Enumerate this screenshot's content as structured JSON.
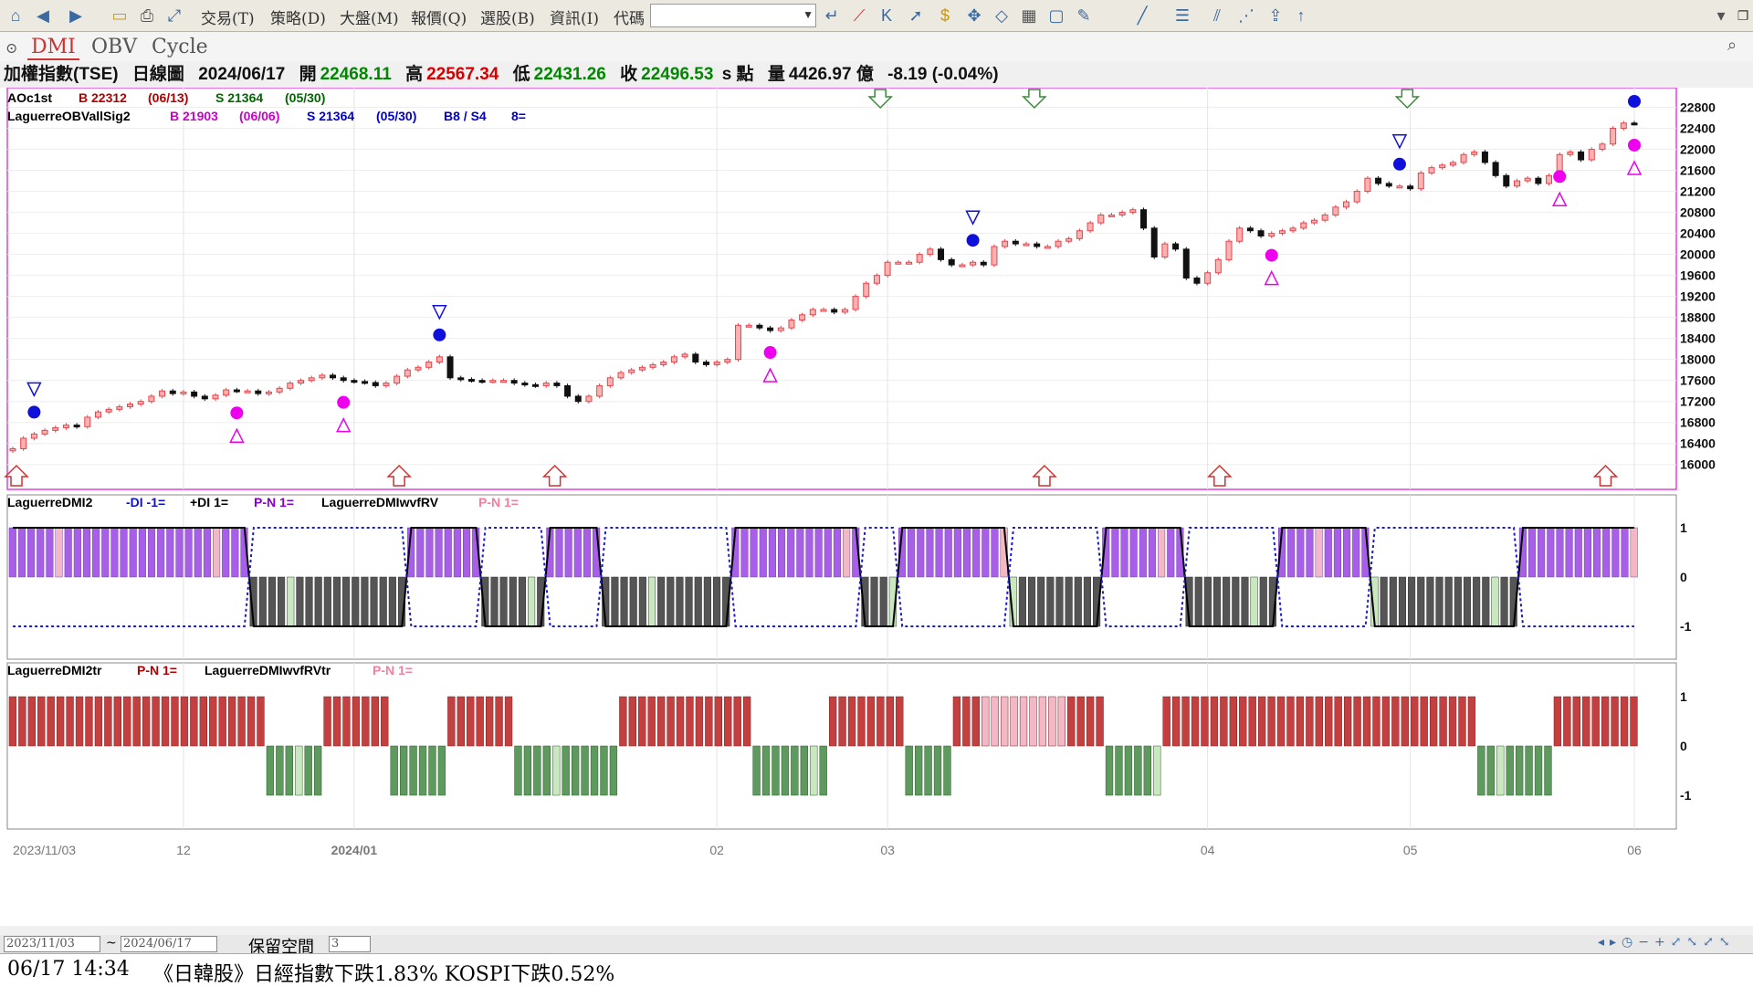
{
  "menus": [
    "交易(T)",
    "策略(D)",
    "大盤(M)",
    "報價(Q)",
    "選股(B)",
    "資訊(I)",
    "代碼"
  ],
  "tabs": [
    "DMI",
    "OBV",
    "Cycle"
  ],
  "header": {
    "symbol": "加權指數(TSE)",
    "period": "日線圖",
    "date": "2024/06/17",
    "open_label": "開",
    "open": "22468.11",
    "high_label": "高",
    "high": "22567.34",
    "low_label": "低",
    "low": "22431.26",
    "close_label": "收",
    "close": "22496.53",
    "unit": "s 點",
    "volume_label": "量",
    "volume": "4426.97 億",
    "change": "-8.19 (-0.04%)"
  },
  "pane1": {
    "legend1": {
      "name": "AOc1st",
      "b": "B 22312",
      "b_date": "(06/13)",
      "s": "S 21364",
      "s_date": "(05/30)"
    },
    "legend2": {
      "name": "LaguerreOBVallSig2",
      "b": "B 21903",
      "b_date": "(06/06)",
      "s": "S 21364",
      "s_date": "(05/30)",
      "bs": "B8 / S4",
      "n": "8="
    }
  },
  "pane2": {
    "name": "LaguerreDMI2",
    "l1": "-DI -1=",
    "l2": "+DI 1=",
    "l3": "P-N 1=",
    "name2": "LaguerreDMIwvfRV",
    "l4": "P-N 1="
  },
  "pane3": {
    "name": "LaguerreDMI2tr",
    "l1": "P-N 1=",
    "name2": "LaguerreDMIwvfRVtr",
    "l2": "P-N 1="
  },
  "x_ticks": [
    "2023/11/03",
    "12",
    "2024/01",
    "02",
    "03",
    "04",
    "05",
    "06"
  ],
  "date_from": "2023/11/03",
  "date_sep": "~",
  "date_to": "2024/06/17",
  "reserve_label": "保留空間",
  "reserve_value": "3",
  "status_time": "06/17 14:34",
  "status_news": "《日韓股》日經指數下跌1.83% KOSPI下跌0.52%",
  "colors": {
    "up": "#e8444c",
    "down": "#111111",
    "buy": "#1010dd",
    "sell": "#ee00ee",
    "purple": "#a75fe8",
    "pink": "#f2b8c6",
    "gray": "#555555",
    "lightgreen": "#c9e8c0",
    "red": "#c44040",
    "green": "#5e9a5e"
  },
  "chart_data": [
    {
      "type": "candlestick",
      "title": "加權指數(TSE) 日線圖",
      "ylim": [
        15700,
        23000
      ],
      "y_ticks": [
        16000,
        16400,
        16800,
        17200,
        17600,
        18000,
        18400,
        18800,
        19200,
        19600,
        20000,
        20400,
        20800,
        21200,
        21600,
        22000,
        22400,
        22800
      ],
      "x_range": [
        "2023/11/03",
        "2024/06/17"
      ],
      "close_approx": [
        16300,
        16500,
        16580,
        16650,
        16700,
        16750,
        16720,
        16900,
        17000,
        17050,
        17100,
        17150,
        17200,
        17300,
        17400,
        17350,
        17380,
        17300,
        17250,
        17320,
        17420,
        17400,
        17400,
        17350,
        17380,
        17450,
        17550,
        17600,
        17650,
        17700,
        17650,
        17600,
        17580,
        17560,
        17500,
        17550,
        17680,
        17800,
        17850,
        17950,
        18050,
        17650,
        17620,
        17600,
        17580,
        17600,
        17600,
        17550,
        17520,
        17500,
        17550,
        17500,
        17300,
        17200,
        17300,
        17500,
        17650,
        17750,
        17800,
        17850,
        17900,
        17950,
        18050,
        18100,
        17950,
        17900,
        17950,
        18000,
        18650,
        18650,
        18600,
        18550,
        18600,
        18750,
        18850,
        18950,
        18950,
        18900,
        18950,
        19200,
        19450,
        19600,
        19850,
        19850,
        19850,
        20000,
        20100,
        19900,
        19800,
        19800,
        19850,
        19800,
        20150,
        20250,
        20200,
        20200,
        20150,
        20150,
        20250,
        20300,
        20450,
        20600,
        20750,
        20750,
        20800,
        20850,
        20500,
        19950,
        20200,
        20100,
        19550,
        19450,
        19650,
        19900,
        20250,
        20500,
        20450,
        20350,
        20400,
        20450,
        20500,
        20600,
        20650,
        20750,
        20900,
        21000,
        21200,
        21450,
        21350,
        21300,
        21300,
        21250,
        21550,
        21650,
        21700,
        21750,
        21900,
        21950,
        21750,
        21500,
        21300,
        21400,
        21450,
        21350,
        21500,
        21900,
        21950,
        21800,
        22000,
        22100,
        22400,
        22500,
        22496.53
      ],
      "signals": {
        "buy_dates": [
          "2023/11/03",
          "2024/01/02",
          "2024/01/23",
          "2024/04/01",
          "2024/04/22",
          "2024/06/13"
        ],
        "sell_dates": [
          "2024/03/08",
          "2024/04/12",
          "2024/05/30"
        ]
      }
    },
    {
      "type": "bar",
      "title": "LaguerreDMI2",
      "ylim": [
        -1.2,
        1.2
      ],
      "y_ticks": [
        -1,
        0,
        1
      ],
      "series": [
        {
          "name": "-DI -1",
          "values": []
        },
        {
          "name": "+DI 1",
          "values": []
        },
        {
          "name": "P-N 1",
          "values": [
            1,
            1,
            1,
            1,
            1,
            1,
            1,
            1,
            1,
            1,
            1,
            1,
            1,
            1,
            1,
            1,
            1,
            1,
            1,
            1,
            1,
            1,
            1,
            1,
            1,
            1,
            -1,
            -1,
            -1,
            -1,
            -1,
            -1,
            -1,
            -1,
            -1,
            -1,
            -1,
            -1,
            -1,
            -1,
            -1,
            -1,
            -1,
            1,
            1,
            1,
            1,
            1,
            1,
            1,
            1,
            -1,
            -1,
            -1,
            -1,
            -1,
            -1,
            -1,
            1,
            1,
            1,
            1,
            1,
            1,
            -1,
            -1,
            -1,
            -1,
            -1,
            -1,
            -1,
            -1,
            -1,
            -1,
            -1,
            -1,
            -1,
            -1,
            1,
            1,
            1,
            1,
            1,
            1,
            1,
            1,
            1,
            1,
            1,
            1,
            1,
            1,
            -1,
            -1,
            -1,
            -1,
            1,
            1,
            1,
            1,
            1,
            1,
            1,
            1,
            1,
            1,
            1,
            1,
            -1,
            -1,
            -1,
            -1,
            -1,
            -1,
            -1,
            -1,
            -1,
            -1,
            1,
            1,
            1,
            1,
            1,
            1,
            1,
            1,
            1,
            -1,
            -1,
            -1,
            -1,
            -1,
            -1,
            -1,
            -1,
            -1,
            -1,
            1,
            1,
            1,
            1,
            1,
            1,
            1,
            1,
            1,
            1,
            -1,
            -1,
            -1,
            -1,
            -1,
            -1,
            -1,
            -1,
            -1,
            -1,
            -1,
            -1,
            -1,
            -1,
            -1,
            -1,
            1,
            1,
            1,
            1,
            1,
            1,
            1,
            1,
            1,
            1,
            1,
            1,
            1
          ]
        },
        {
          "name": "LaguerreDMIwvfRV P-N 1",
          "values": []
        }
      ]
    },
    {
      "type": "bar",
      "title": "LaguerreDMI2tr",
      "ylim": [
        -1.2,
        1.2
      ],
      "y_ticks": [
        -1,
        0,
        1
      ],
      "series": [
        {
          "name": "P-N 1",
          "values": [
            1,
            1,
            1,
            1,
            1,
            1,
            1,
            1,
            1,
            1,
            1,
            1,
            1,
            1,
            1,
            1,
            1,
            1,
            1,
            1,
            1,
            1,
            1,
            1,
            1,
            1,
            1,
            -1,
            -1,
            -1,
            -1,
            -1,
            -1,
            1,
            1,
            1,
            1,
            1,
            1,
            1,
            -1,
            -1,
            -1,
            -1,
            -1,
            -1,
            1,
            1,
            1,
            1,
            1,
            1,
            1,
            -1,
            -1,
            -1,
            -1,
            -1,
            -1,
            -1,
            -1,
            -1,
            -1,
            -1,
            1,
            1,
            1,
            1,
            1,
            1,
            1,
            1,
            1,
            1,
            1,
            1,
            1,
            1,
            -1,
            -1,
            -1,
            -1,
            -1,
            -1,
            -1,
            -1,
            1,
            1,
            1,
            1,
            1,
            1,
            1,
            1,
            -1,
            -1,
            -1,
            -1,
            -1,
            1,
            1,
            1,
            1,
            1,
            1,
            1,
            1,
            1,
            1,
            1,
            1,
            1,
            1,
            1,
            1,
            -1,
            -1,
            -1,
            -1,
            -1,
            -1,
            1,
            1,
            1,
            1,
            1,
            1,
            1,
            1,
            1,
            1,
            1,
            1,
            1,
            1,
            1,
            1,
            1,
            1,
            1,
            1,
            1,
            1,
            1,
            1,
            1,
            1,
            1,
            1,
            1,
            1,
            1,
            1,
            1,
            -1,
            -1,
            -1,
            -1,
            -1,
            -1,
            -1,
            -1,
            1,
            1,
            1,
            1,
            1,
            1,
            1,
            1,
            1
          ]
        },
        {
          "name": "LaguerreDMIwvfRVtr P-N 1",
          "values": []
        }
      ]
    }
  ]
}
